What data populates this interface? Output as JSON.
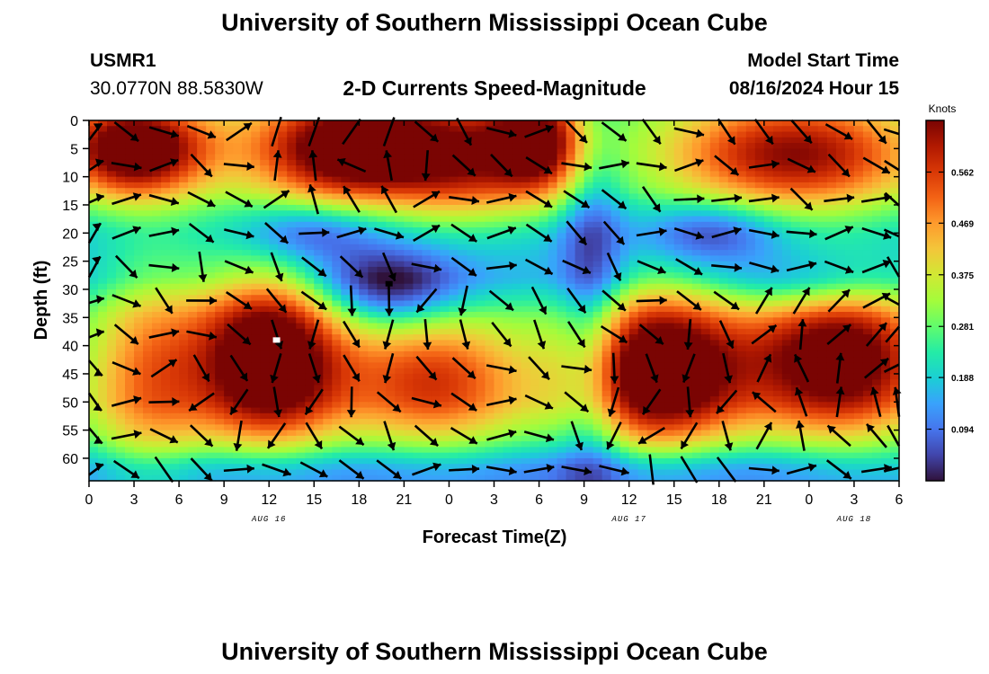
{
  "page": {
    "title": "University of Southern Mississippi Ocean Cube",
    "footer_title": "University of Southern Mississippi Ocean Cube"
  },
  "header": {
    "station": "USMR1",
    "coords": "30.0770N  88.5830W",
    "plot_title": "2-D Currents Speed-Magnitude",
    "model_label": "Model Start Time",
    "model_time": "08/16/2024 Hour 15"
  },
  "colors": {
    "colormap": [
      "#30123b",
      "#4145ab",
      "#4675ed",
      "#39a2fc",
      "#1bcfd4",
      "#24eca6",
      "#61fc6c",
      "#a4fc3b",
      "#d1e834",
      "#f3c63a",
      "#fe9b2d",
      "#f36315",
      "#d93806",
      "#b11901",
      "#7a0403"
    ],
    "arrow": "#000000",
    "marker_white": "#ffffff",
    "marker_black": "#000000"
  },
  "chart_data": {
    "type": "heatmap",
    "subtype": "depth-time speed field with current direction vectors",
    "xlabel": "Forecast Time(Z)",
    "ylabel": "Depth (ft)",
    "x_ticks": [
      "0",
      "3",
      "6",
      "9",
      "12",
      "15",
      "18",
      "21",
      "0",
      "3",
      "6",
      "9",
      "12",
      "15",
      "18",
      "21",
      "0",
      "3",
      "6"
    ],
    "x_range_hours": [
      0,
      54
    ],
    "day_labels": [
      {
        "text": "AUG 16",
        "hour": 12
      },
      {
        "text": "AUG 17",
        "hour": 36
      },
      {
        "text": "AUG 18",
        "hour": 51
      }
    ],
    "y_ticks": [
      0,
      5,
      10,
      15,
      20,
      25,
      30,
      35,
      40,
      45,
      50,
      55,
      60
    ],
    "y_range_ft": [
      0,
      64
    ],
    "y_inverted": true,
    "colorbar": {
      "label": "Knots",
      "ticks": [
        "0.562",
        "0.469",
        "0.375",
        "0.281",
        "0.188",
        "0.094"
      ],
      "tick_values": [
        0.562,
        0.469,
        0.375,
        0.281,
        0.188,
        0.094
      ],
      "range": [
        0,
        0.656
      ]
    },
    "speed_blobs_knots": [
      {
        "t": 12,
        "d": 42,
        "st": 3.5,
        "sd": 11,
        "amp": 0.55
      },
      {
        "t": 4,
        "d": 45,
        "st": 3,
        "sd": 15,
        "amp": 0.25
      },
      {
        "t": 23,
        "d": 46,
        "st": 4.5,
        "sd": 9,
        "amp": 0.32
      },
      {
        "t": 38,
        "d": 44,
        "st": 4,
        "sd": 10,
        "amp": 0.55
      },
      {
        "t": 50,
        "d": 42,
        "st": 4.5,
        "sd": 10,
        "amp": 0.5
      },
      {
        "t": 18,
        "d": 5,
        "st": 5,
        "sd": 7,
        "amp": 0.55
      },
      {
        "t": 3,
        "d": 5,
        "st": 3.5,
        "sd": 6,
        "amp": 0.52
      },
      {
        "t": 30,
        "d": 4,
        "st": 2.5,
        "sd": 7,
        "amp": 0.45
      },
      {
        "t": 47,
        "d": 6,
        "st": 6,
        "sd": 7,
        "amp": 0.4
      },
      {
        "t": 25,
        "d": 8,
        "st": 3,
        "sd": 8,
        "amp": 0.2
      },
      {
        "t": 20,
        "d": 30,
        "st": 3.5,
        "sd": 5,
        "amp": -0.22
      },
      {
        "t": 14.5,
        "d": 20,
        "st": 3,
        "sd": 4,
        "amp": -0.15
      },
      {
        "t": 41.5,
        "d": 20,
        "st": 3,
        "sd": 4,
        "amp": -0.15
      },
      {
        "t": 48,
        "d": 29,
        "st": 4,
        "sd": 4,
        "amp": -0.12
      },
      {
        "t": 33.5,
        "d": 30,
        "st": 1.5,
        "sd": 30,
        "amp": -0.15
      },
      {
        "t": 10,
        "d": 62,
        "st": 12,
        "sd": 3,
        "amp": -0.1
      },
      {
        "t": 40,
        "d": 62,
        "st": 10,
        "sd": 3,
        "amp": -0.1
      }
    ],
    "speed_baseline_knots": 0.2,
    "speed_depth_profile": [
      {
        "d": 0,
        "v": 0.25
      },
      {
        "d": 12,
        "v": 0.24
      },
      {
        "d": 20,
        "v": 0.16
      },
      {
        "d": 28,
        "v": 0.14
      },
      {
        "d": 35,
        "v": 0.22
      },
      {
        "d": 50,
        "v": 0.26
      },
      {
        "d": 64,
        "v": 0.16
      }
    ],
    "vector_grid": {
      "times_hours": [
        0,
        2.5,
        5,
        7.5,
        10,
        12.5,
        15,
        17.5,
        20,
        22.5,
        25,
        27.5,
        30,
        32.5,
        35,
        37.5,
        40,
        42.5,
        45,
        47.5,
        50,
        52.5,
        54
      ],
      "depths_ft": [
        2,
        8,
        14,
        20,
        26,
        32,
        38,
        44,
        50,
        56,
        62
      ]
    },
    "vector_field": [
      {
        "t": 12,
        "d": 42,
        "vx": 0.0,
        "vy": 1.0,
        "r": 9
      },
      {
        "t": 38,
        "d": 44,
        "vx": 0.0,
        "vy": 1.0,
        "r": 9
      },
      {
        "t": 50,
        "d": 42,
        "vx": 0.3,
        "vy": -1.0,
        "r": 10
      },
      {
        "t": 18,
        "d": 5,
        "vx": -0.4,
        "vy": -0.8,
        "r": 8
      },
      {
        "t": 3,
        "d": 20,
        "vx": 1.0,
        "vy": 0.1,
        "r": 10
      },
      {
        "t": 27,
        "d": 24,
        "vx": 0.9,
        "vy": 0.2,
        "r": 10
      },
      {
        "t": 20,
        "d": 30,
        "vx": -0.4,
        "vy": 1.0,
        "r": 6
      }
    ],
    "markers": [
      {
        "t": 12.5,
        "d": 39,
        "color": "white"
      },
      {
        "t": 20.0,
        "d": 29,
        "color": "black"
      }
    ]
  }
}
